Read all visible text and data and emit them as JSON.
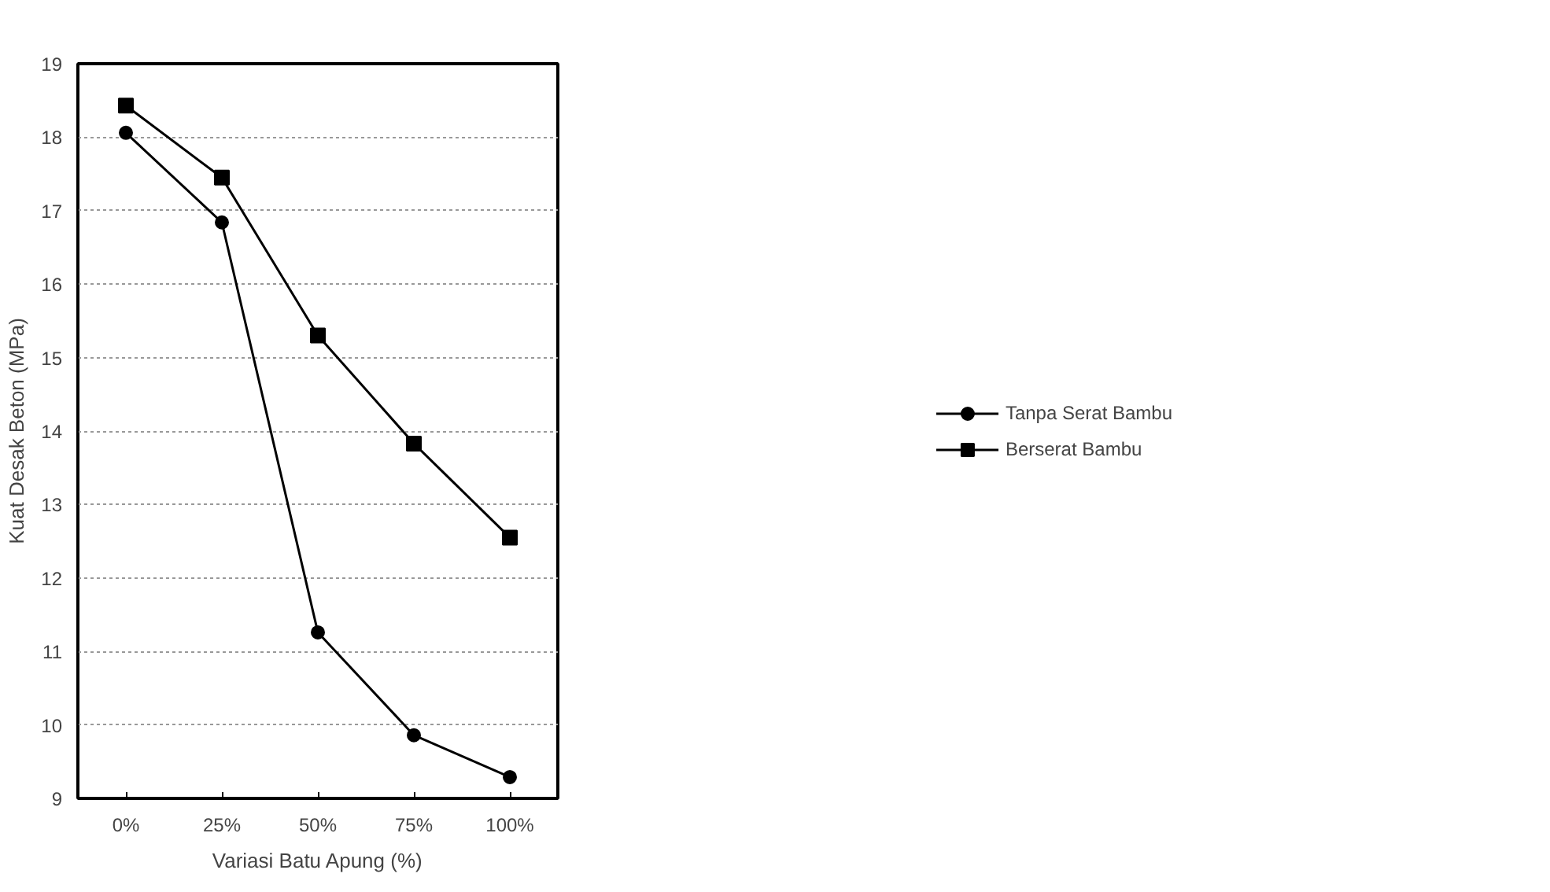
{
  "chart_data": {
    "type": "line",
    "xlabel": "Variasi Batu Apung (%)",
    "ylabel": "Kuat Desak Beton (MPa)",
    "categories": [
      "0%",
      "25%",
      "50%",
      "75%",
      "100%"
    ],
    "series": [
      {
        "name": "Tanpa Serat Bambu",
        "color": "#000000",
        "marker": "circle",
        "values": [
          18.06,
          16.84,
          11.26,
          9.86,
          9.29
        ]
      },
      {
        "name": "Berserat Bambu",
        "color": "#000000",
        "marker": "square",
        "values": [
          18.43,
          17.45,
          15.3,
          13.83,
          12.55
        ]
      }
    ],
    "ylim": [
      9,
      19
    ],
    "yticks": [
      9,
      10,
      11,
      12,
      13,
      14,
      15,
      16,
      17,
      18,
      19
    ],
    "grid": "y",
    "legend": "right",
    "line_style": "solid"
  }
}
